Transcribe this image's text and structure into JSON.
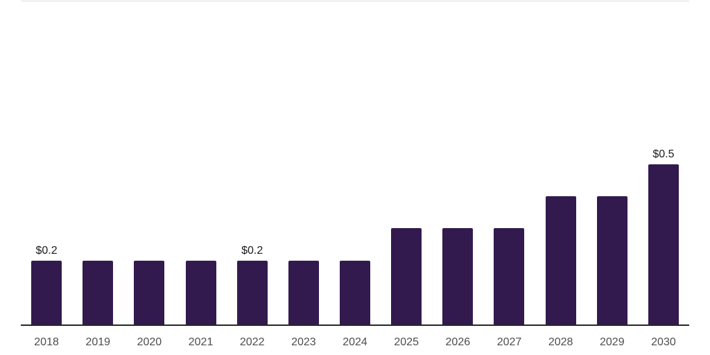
{
  "chart_data": {
    "type": "bar",
    "title": "",
    "xlabel": "",
    "ylabel": "",
    "categories": [
      "2018",
      "2019",
      "2020",
      "2021",
      "2022",
      "2023",
      "2024",
      "2025",
      "2026",
      "2027",
      "2028",
      "2029",
      "2030"
    ],
    "values": [
      0.2,
      0.2,
      0.2,
      0.2,
      0.2,
      0.2,
      0.2,
      0.3,
      0.3,
      0.3,
      0.4,
      0.4,
      0.5
    ],
    "data_labels": [
      "$0.2",
      "",
      "",
      "",
      "$0.2",
      "",
      "",
      "",
      "",
      "",
      "",
      "",
      "$0.5"
    ],
    "ylim": [
      0,
      0.54
    ],
    "grid": false,
    "legend": "none",
    "colors": {
      "bar": "#321a4e",
      "axis": "#262626",
      "data_label": "#1a1a1a",
      "tick_label": "#4d4d4d",
      "top_rule": "#f2f2f2",
      "background": "#ffffff"
    }
  }
}
